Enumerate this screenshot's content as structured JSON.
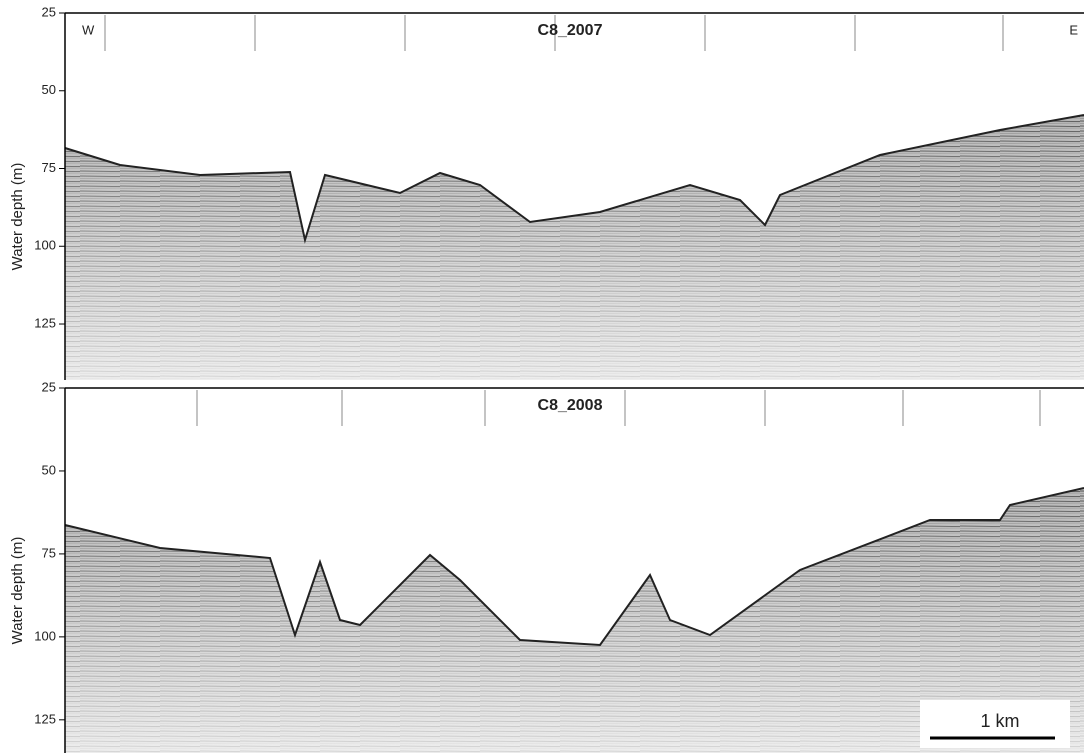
{
  "chart_data": [
    {
      "type": "profile",
      "title": "C8_2007",
      "y_label": "Water depth (m)",
      "annotations": [
        "W",
        "E"
      ],
      "ylim": [
        25,
        143
      ],
      "yticks": [
        25,
        50,
        75,
        100,
        125
      ]
    },
    {
      "type": "profile",
      "title": "C8_2008",
      "y_label": "Water depth (m)",
      "annotations": [
        "1 km"
      ],
      "ylim": [
        25,
        135
      ],
      "yticks": [
        25,
        50,
        75,
        100,
        125
      ]
    }
  ]
}
